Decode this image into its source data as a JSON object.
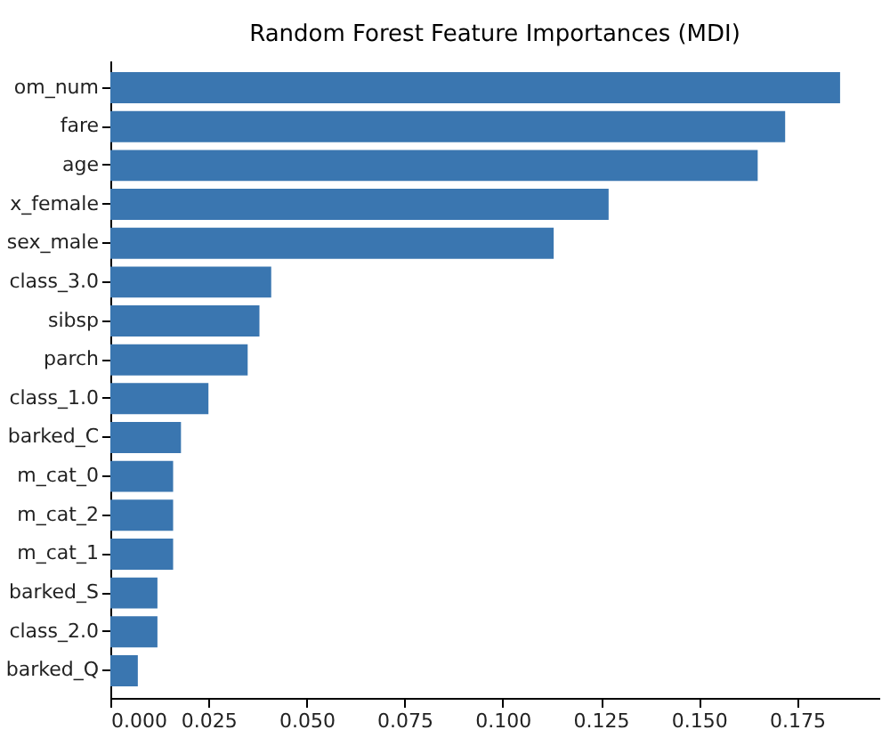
{
  "chart_data": {
    "type": "bar",
    "orientation": "horizontal",
    "title": "Random Forest Feature Importances (MDI)",
    "categories": [
      "om_num",
      "fare",
      "age",
      "x_female",
      "sex_male",
      "class_3.0",
      "sibsp",
      "parch",
      "class_1.0",
      "barked_C",
      "m_cat_0",
      "m_cat_2",
      "m_cat_1",
      "barked_S",
      "class_2.0",
      "barked_Q"
    ],
    "values": [
      0.186,
      0.172,
      0.165,
      0.127,
      0.113,
      0.041,
      0.038,
      0.035,
      0.025,
      0.018,
      0.016,
      0.016,
      0.016,
      0.012,
      0.012,
      0.007
    ],
    "color": "#3a76b0",
    "xlim": [
      0,
      0.196
    ],
    "xticks": [
      {
        "value": 0,
        "label": "0.000"
      },
      {
        "value": 0.025,
        "label": "0.025"
      },
      {
        "value": 0.05,
        "label": "0.050"
      },
      {
        "value": 0.075,
        "label": "0.075"
      },
      {
        "value": 0.1,
        "label": "0.100"
      },
      {
        "value": 0.125,
        "label": "0.125"
      },
      {
        "value": 0.15,
        "label": "0.150"
      },
      {
        "value": 0.175,
        "label": "0.175"
      }
    ]
  }
}
